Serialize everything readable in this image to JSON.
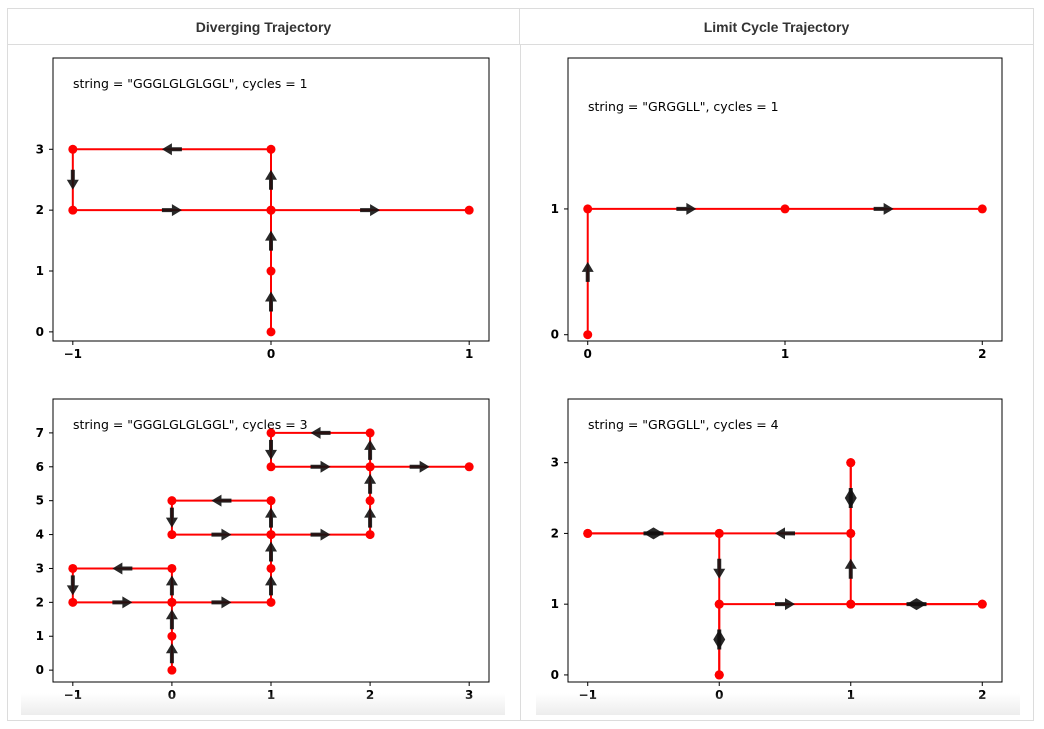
{
  "columns": {
    "left_title": "Diverging Trajectory",
    "right_title": "Limit Cycle Trajectory"
  },
  "colors": {
    "path": "#ff0000",
    "arrow": "#111111",
    "axes": "#000000"
  },
  "chart_data": [
    {
      "type": "line",
      "annotation": "string = \"GGGLGLGLGGL\", cycles = 1",
      "x_ticks": [
        -1,
        0,
        1
      ],
      "y_ticks": [
        0,
        1,
        2,
        3
      ],
      "xlim": [
        -1.1,
        1.1
      ],
      "ylim": [
        -0.15,
        4.5
      ],
      "x": [
        0,
        0,
        0,
        0,
        -1,
        -1,
        0,
        1
      ],
      "y": [
        0,
        1,
        2,
        3,
        3,
        2,
        2,
        2
      ]
    },
    {
      "type": "line",
      "annotation": "string = \"GRGGLL\", cycles = 1",
      "x_ticks": [
        0,
        1,
        2
      ],
      "y_ticks": [
        0,
        1
      ],
      "xlim": [
        -0.1,
        2.1
      ],
      "ylim": [
        -0.05,
        2.2
      ],
      "x": [
        0,
        0,
        1,
        2
      ],
      "y": [
        0,
        1,
        1,
        1
      ]
    },
    {
      "type": "line",
      "annotation": "string = \"GGGLGLGLGGL\", cycles = 3",
      "x_ticks": [
        -1,
        0,
        1,
        2,
        3
      ],
      "y_ticks": [
        0,
        1,
        2,
        3,
        4,
        5,
        6,
        7
      ],
      "xlim": [
        -1.2,
        3.2
      ],
      "ylim": [
        -0.35,
        8.0
      ],
      "x": [
        0,
        0,
        0,
        0,
        -1,
        -1,
        0,
        1,
        1,
        1,
        1,
        0,
        0,
        1,
        2,
        2,
        2,
        2,
        1,
        1,
        2,
        3
      ],
      "y": [
        0,
        1,
        2,
        3,
        3,
        2,
        2,
        2,
        3,
        4,
        5,
        5,
        4,
        4,
        4,
        5,
        6,
        7,
        7,
        6,
        6,
        6
      ]
    },
    {
      "type": "line",
      "annotation": "string = \"GRGGLL\", cycles = 4",
      "x_ticks": [
        -1,
        0,
        1,
        2
      ],
      "y_ticks": [
        0,
        1,
        2,
        3
      ],
      "xlim": [
        -1.15,
        2.15
      ],
      "ylim": [
        -0.1,
        3.9
      ],
      "x": [
        0,
        0,
        1,
        2,
        2,
        1,
        1,
        1,
        1,
        1,
        0,
        -1,
        -1,
        0,
        0,
        0,
        0
      ],
      "y": [
        0,
        1,
        1,
        1,
        1,
        1,
        2,
        3,
        3,
        2,
        2,
        2,
        2,
        2,
        1,
        0,
        0
      ]
    }
  ]
}
